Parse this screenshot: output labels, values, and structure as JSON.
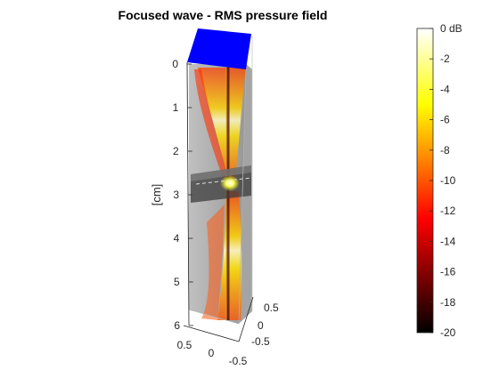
{
  "chart_data": {
    "type": "heatmap",
    "title": "Focused wave - RMS pressure field",
    "ylabel": "[cm]",
    "depth_ticks": [
      "0",
      "1",
      "2",
      "3",
      "4",
      "5",
      "6"
    ],
    "depth_range": [
      0,
      6
    ],
    "lateral_ticks_x": [
      "0.5",
      "0",
      "-0.5"
    ],
    "lateral_ticks_y": [
      "0.5",
      "0",
      "-0.5"
    ],
    "lateral_range": [
      -0.5,
      0.5
    ],
    "focal_depth": 2.75,
    "transducer_color": "#0000ff",
    "colorbar": {
      "label_unit": "dB",
      "ticks": [
        "0 dB",
        "-2",
        "-4",
        "-6",
        "-8",
        "-10",
        "-12",
        "-14",
        "-16",
        "-18",
        "-20"
      ],
      "range": [
        -20,
        0
      ],
      "colormap": "hot"
    },
    "grid": true
  }
}
